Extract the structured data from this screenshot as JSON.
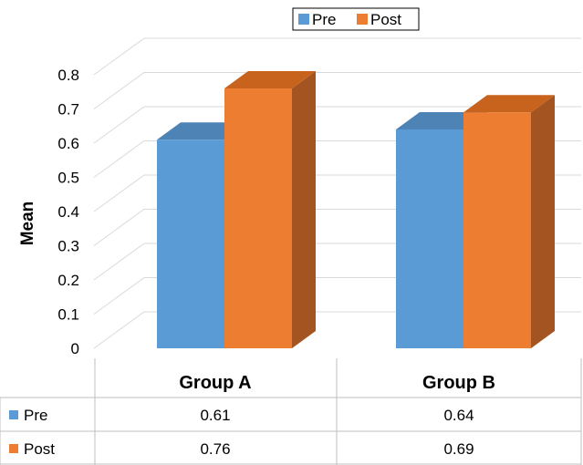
{
  "chart_data": {
    "type": "bar",
    "categories": [
      "Group A",
      "Group B"
    ],
    "series": [
      {
        "name": "Pre",
        "values": [
          0.61,
          0.64
        ],
        "color": "#5B9BD5"
      },
      {
        "name": "Post",
        "values": [
          0.76,
          0.69
        ],
        "color": "#ED7D31"
      }
    ],
    "ylabel": "Mean",
    "ylim": [
      0,
      0.8
    ],
    "yticks": [
      "0",
      "0.1",
      "0.2",
      "0.3",
      "0.4",
      "0.5",
      "0.6",
      "0.7",
      "0.8"
    ],
    "legend_position": "top",
    "grid": true,
    "style": "3d-clustered-column",
    "data_table": {
      "rows": [
        {
          "label": "Pre",
          "values": [
            "0.61",
            "0.64"
          ]
        },
        {
          "label": "Post",
          "values": [
            "0.76",
            "0.69"
          ]
        }
      ]
    }
  }
}
